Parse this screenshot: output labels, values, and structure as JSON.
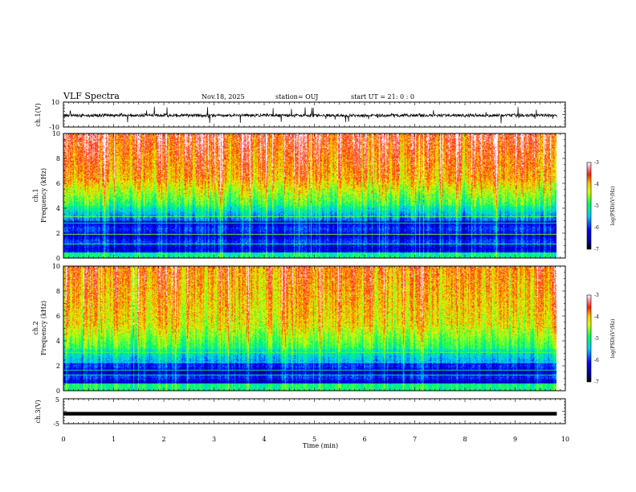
{
  "header": {
    "title": "VLF Spectra",
    "date": "Nov.18, 2025",
    "station": "station= OUJ",
    "start": "start  UT =   21: 0  : 0"
  },
  "chart_data": [
    {
      "type": "line",
      "id": "ch1-waveform",
      "ylabel": "ch.1(V)",
      "ylim": [
        -10,
        10
      ],
      "yticks": [
        "10",
        "-10"
      ],
      "xlim": [
        0,
        10
      ],
      "x_end": 9.83
    },
    {
      "type": "heatmap",
      "id": "ch1-spectrogram",
      "ylabel_top": "ch.1",
      "ylabel": "Frequency (kHz)",
      "ylim": [
        0,
        10
      ],
      "yticks": [
        "0",
        "2",
        "4",
        "6",
        "8",
        "10"
      ],
      "xlim": [
        0,
        10
      ],
      "x_end": 9.83,
      "colorbar": {
        "label": "log(PSD)(V²/Hz)",
        "range": [
          -7,
          -3
        ],
        "ticks": [
          "-3",
          "-4",
          "-5",
          "-6",
          "-7"
        ]
      }
    },
    {
      "type": "heatmap",
      "id": "ch2-spectrogram",
      "ylabel_top": "ch.2",
      "ylabel": "Frequency (kHz)",
      "ylim": [
        0,
        10
      ],
      "yticks": [
        "0",
        "2",
        "4",
        "6",
        "8",
        "10"
      ],
      "xlim": [
        0,
        10
      ],
      "x_end": 9.83,
      "colorbar": {
        "label": "log(PSD)(V²/Hz)",
        "range": [
          -7,
          -3
        ],
        "ticks": [
          "-3",
          "-4",
          "-5",
          "-6",
          "-7"
        ]
      }
    },
    {
      "type": "line",
      "id": "ch3-waveform",
      "ylabel": "ch.3(V)",
      "ylim": [
        -5,
        5
      ],
      "yticks": [
        "5",
        "-5"
      ],
      "level": -1,
      "xlim": [
        0,
        10
      ],
      "xlabel": "Time (min)",
      "xticks": [
        "0",
        "1",
        "2",
        "3",
        "4",
        "5",
        "6",
        "7",
        "8",
        "9",
        "10"
      ]
    }
  ]
}
